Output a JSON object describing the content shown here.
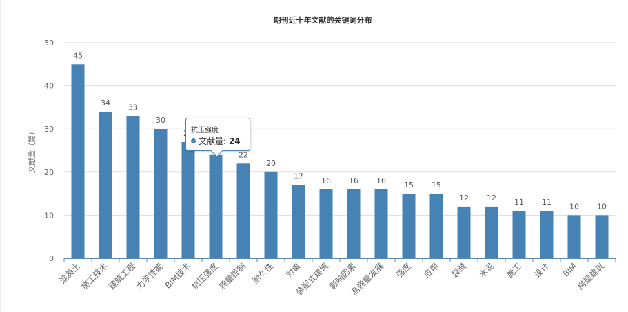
{
  "chart_data": {
    "type": "bar",
    "title": "期刊近十年文献的关键词分布",
    "ylabel": "文献量（篇）",
    "xlabel": "",
    "ylim": [
      0,
      50
    ],
    "yticks": [
      0,
      10,
      20,
      30,
      40,
      50
    ],
    "grid": true,
    "categories": [
      "混凝土",
      "施工技术",
      "建筑工程",
      "力学性能",
      "BIM技术",
      "抗压强度",
      "质量控制",
      "耐久性",
      "对策",
      "装配式建筑",
      "影响因素",
      "高质量发展",
      "强度",
      "应用",
      "裂缝",
      "水泥",
      "施工",
      "设计",
      "BIM",
      "房屋建筑"
    ],
    "series": [
      {
        "name": "文献量",
        "color": "#4682b4",
        "values": [
          45,
          34,
          33,
          30,
          27,
          24,
          22,
          20,
          17,
          16,
          16,
          16,
          15,
          15,
          12,
          12,
          11,
          11,
          10,
          10
        ]
      }
    ]
  },
  "tooltip": {
    "category": "抗压强度",
    "series_label": "文献量:",
    "value": "24"
  }
}
